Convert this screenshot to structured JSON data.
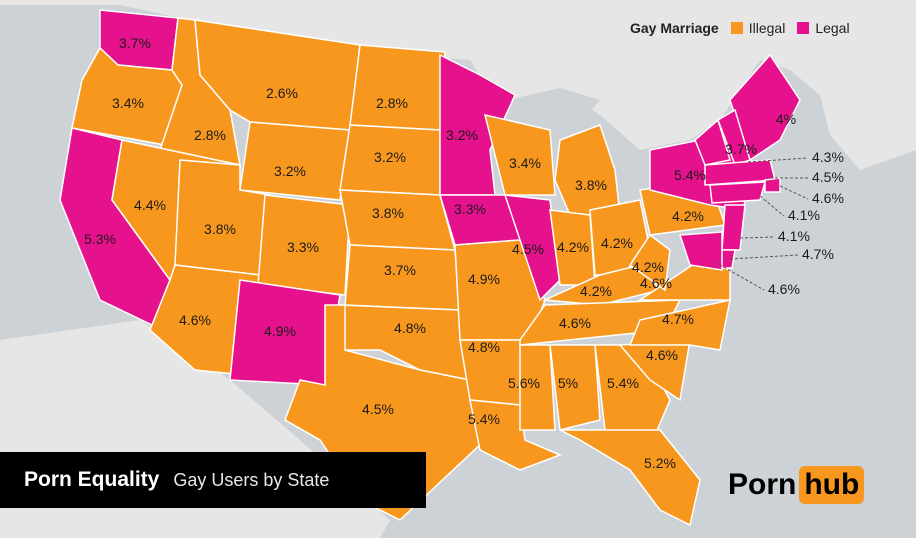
{
  "legend": {
    "title": "Gay Marriage",
    "illegal_label": "Illegal",
    "legal_label": "Legal",
    "illegal_color": "#f7971d",
    "legal_color": "#e6118c"
  },
  "banner": {
    "title": "Porn Equality",
    "subtitle": "Gay Users by State"
  },
  "logo": {
    "part1": "Porn",
    "part2": "hub"
  },
  "states": [
    {
      "code": "WA",
      "value": "3.7%",
      "marriage": "legal"
    },
    {
      "code": "OR",
      "value": "3.4%",
      "marriage": "illegal"
    },
    {
      "code": "CA",
      "value": "5.3%",
      "marriage": "legal"
    },
    {
      "code": "ID",
      "value": "2.8%",
      "marriage": "illegal"
    },
    {
      "code": "NV",
      "value": "4.4%",
      "marriage": "illegal"
    },
    {
      "code": "MT",
      "value": "2.6%",
      "marriage": "illegal"
    },
    {
      "code": "WY",
      "value": "3.2%",
      "marriage": "illegal"
    },
    {
      "code": "UT",
      "value": "3.8%",
      "marriage": "illegal"
    },
    {
      "code": "AZ",
      "value": "4.6%",
      "marriage": "illegal"
    },
    {
      "code": "CO",
      "value": "3.3%",
      "marriage": "illegal"
    },
    {
      "code": "NM",
      "value": "4.9%",
      "marriage": "legal"
    },
    {
      "code": "ND",
      "value": "2.8%",
      "marriage": "illegal"
    },
    {
      "code": "SD",
      "value": "3.2%",
      "marriage": "illegal"
    },
    {
      "code": "NE",
      "value": "3.8%",
      "marriage": "illegal"
    },
    {
      "code": "KS",
      "value": "3.7%",
      "marriage": "illegal"
    },
    {
      "code": "OK",
      "value": "4.8%",
      "marriage": "illegal"
    },
    {
      "code": "TX",
      "value": "4.5%",
      "marriage": "illegal"
    },
    {
      "code": "MN",
      "value": "3.2%",
      "marriage": "legal"
    },
    {
      "code": "IA",
      "value": "3.3%",
      "marriage": "legal"
    },
    {
      "code": "MO",
      "value": "4.9%",
      "marriage": "illegal"
    },
    {
      "code": "AR",
      "value": "4.8%",
      "marriage": "illegal"
    },
    {
      "code": "LA",
      "value": "5.4%",
      "marriage": "illegal"
    },
    {
      "code": "WI",
      "value": "3.4%",
      "marriage": "illegal"
    },
    {
      "code": "IL",
      "value": "4.5%",
      "marriage": "legal"
    },
    {
      "code": "MI",
      "value": "3.8%",
      "marriage": "illegal"
    },
    {
      "code": "IN",
      "value": "4.2%",
      "marriage": "illegal"
    },
    {
      "code": "OH",
      "value": "4.2%",
      "marriage": "illegal"
    },
    {
      "code": "KY",
      "value": "4.2%",
      "marriage": "illegal"
    },
    {
      "code": "TN",
      "value": "4.6%",
      "marriage": "illegal"
    },
    {
      "code": "MS",
      "value": "5.6%",
      "marriage": "illegal"
    },
    {
      "code": "AL",
      "value": "5%",
      "marriage": "illegal"
    },
    {
      "code": "GA",
      "value": "5.4%",
      "marriage": "illegal"
    },
    {
      "code": "FL",
      "value": "5.2%",
      "marriage": "illegal"
    },
    {
      "code": "SC",
      "value": "4.6%",
      "marriage": "illegal"
    },
    {
      "code": "NC",
      "value": "4.7%",
      "marriage": "illegal"
    },
    {
      "code": "VA",
      "value": "4.6%",
      "marriage": "illegal"
    },
    {
      "code": "WV",
      "value": "4.2%",
      "marriage": "illegal"
    },
    {
      "code": "PA",
      "value": "4.2%",
      "marriage": "illegal"
    },
    {
      "code": "NY",
      "value": "5.4%",
      "marriage": "legal"
    },
    {
      "code": "VT",
      "value": "3.7%",
      "marriage": "legal"
    },
    {
      "code": "ME",
      "value": "4%",
      "marriage": "legal"
    },
    {
      "code": "NH",
      "value": "4.3%",
      "marriage": "legal"
    },
    {
      "code": "MA",
      "value": "4.5%",
      "marriage": "legal"
    },
    {
      "code": "RI",
      "value": "4.6%",
      "marriage": "legal"
    },
    {
      "code": "CT",
      "value": "4.1%",
      "marriage": "legal"
    },
    {
      "code": "NJ",
      "value": "4.1%",
      "marriage": "legal"
    },
    {
      "code": "DE",
      "value": "4.7%",
      "marriage": "legal"
    },
    {
      "code": "MD",
      "value": "4.6%",
      "marriage": "legal"
    }
  ]
}
